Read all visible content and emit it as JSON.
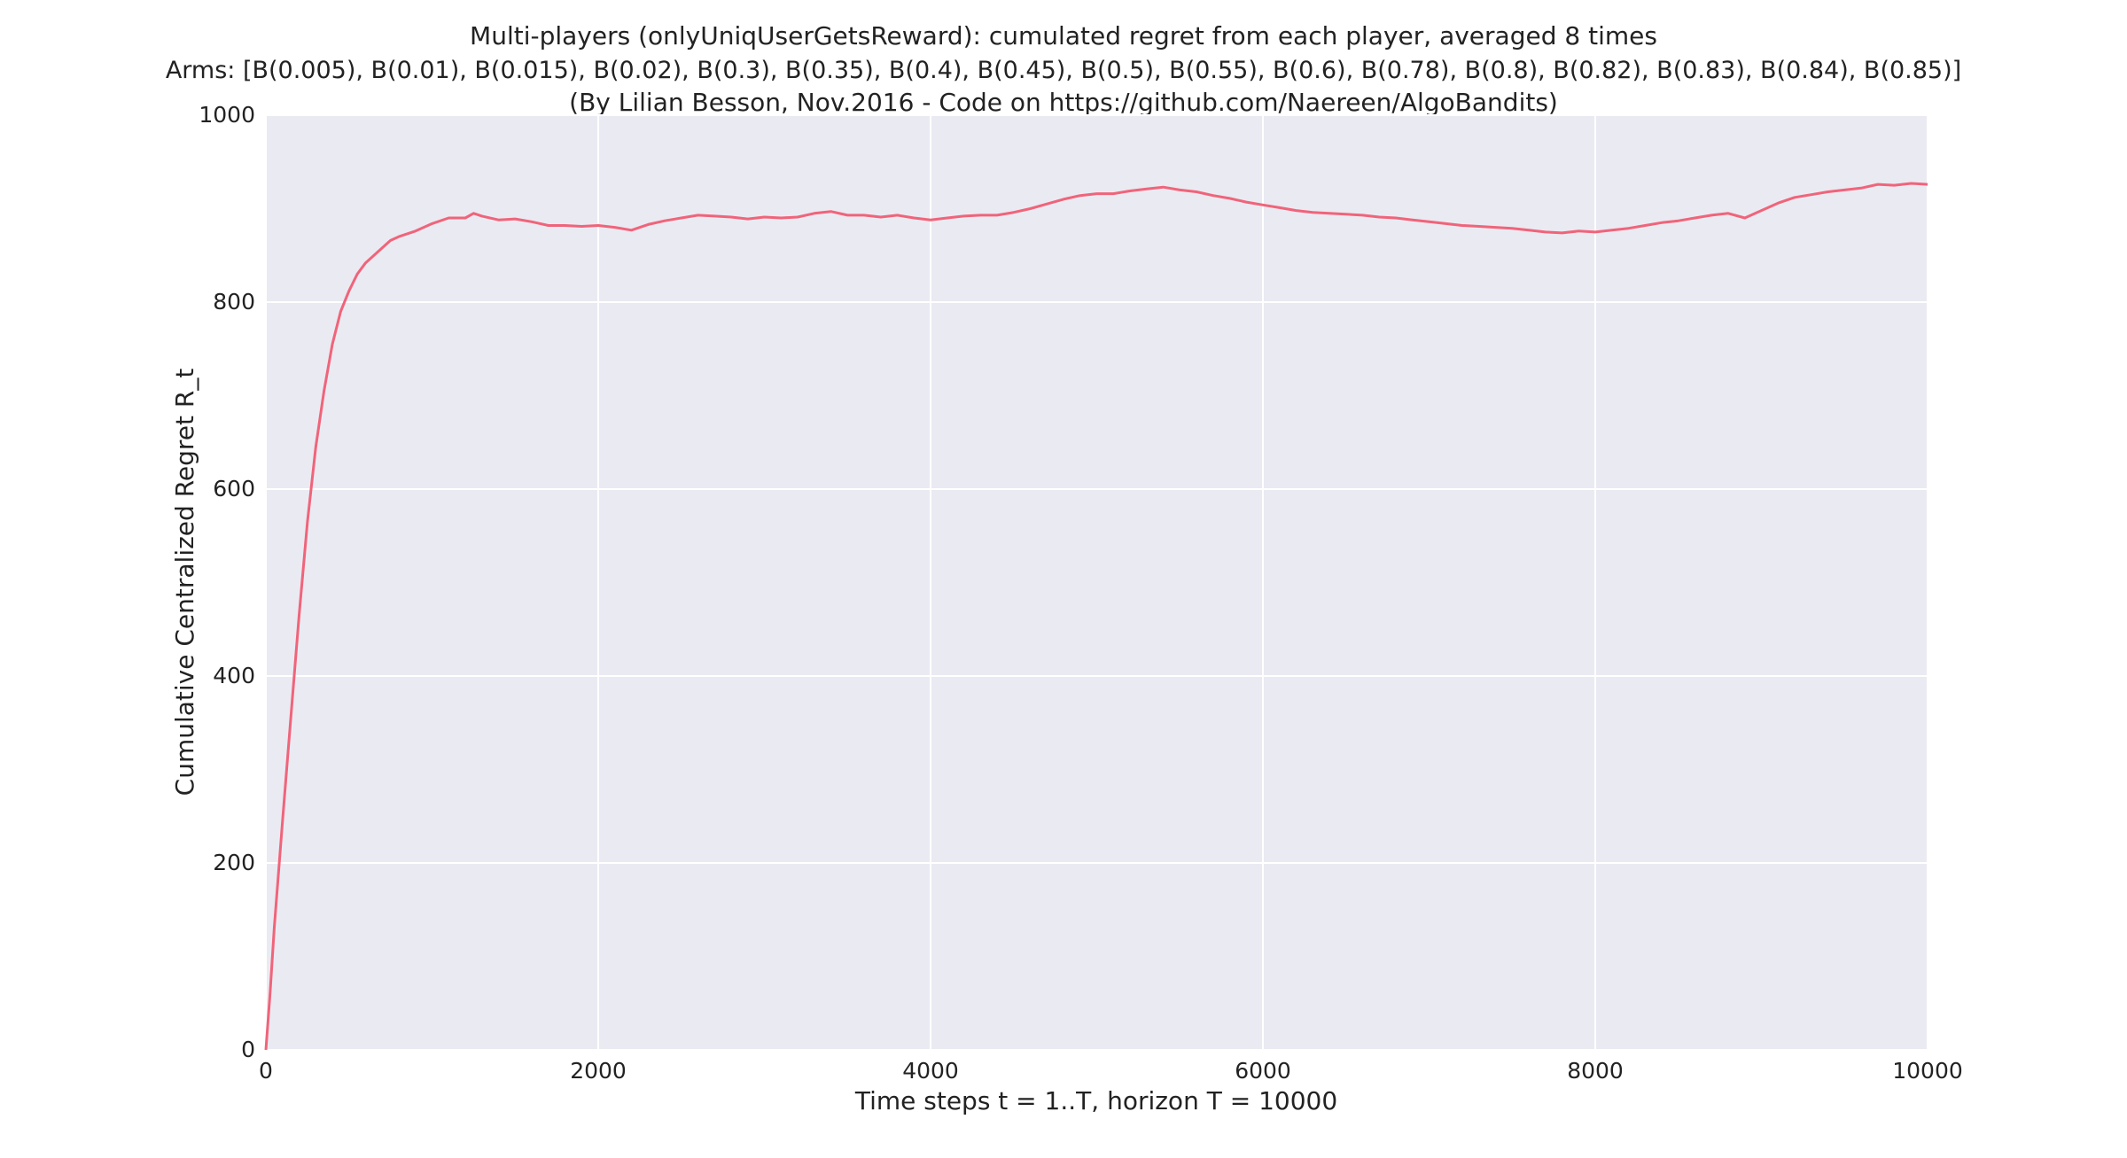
{
  "chart_data": {
    "type": "line",
    "title_lines": [
      "Multi-players (onlyUniqUserGetsReward): cumulated regret from each player, averaged 8 times",
      "Arms: [B(0.005), B(0.01), B(0.015), B(0.02), B(0.3), B(0.35), B(0.4), B(0.45), B(0.5), B(0.55), B(0.6), B(0.78), B(0.8), B(0.82), B(0.83), B(0.84), B(0.85)]",
      "(By Lilian Besson, Nov.2016 - Code on https://github.com/Naereen/AlgoBandits)"
    ],
    "xlabel": "Time steps t = 1..T, horizon T = 10000",
    "ylabel": "Cumulative Centralized Regret R_t",
    "xlim": [
      0,
      10000
    ],
    "ylim": [
      0,
      1000
    ],
    "x_ticks": [
      0,
      2000,
      4000,
      6000,
      8000,
      10000
    ],
    "y_ticks": [
      0,
      200,
      400,
      600,
      800,
      1000
    ],
    "grid": true,
    "background_color": "#eaeaf2",
    "grid_color": "#ffffff",
    "series": [
      {
        "color": "#f0647a",
        "x": [
          0,
          25,
          50,
          100,
          150,
          200,
          250,
          300,
          350,
          400,
          450,
          500,
          550,
          600,
          650,
          700,
          750,
          800,
          900,
          1000,
          1100,
          1200,
          1250,
          1300,
          1400,
          1500,
          1600,
          1700,
          1800,
          1900,
          2000,
          2100,
          2200,
          2300,
          2400,
          2500,
          2600,
          2700,
          2800,
          2900,
          3000,
          3100,
          3200,
          3300,
          3400,
          3500,
          3600,
          3700,
          3800,
          3900,
          4000,
          4100,
          4200,
          4300,
          4400,
          4500,
          4600,
          4700,
          4800,
          4900,
          5000,
          5100,
          5200,
          5300,
          5400,
          5500,
          5600,
          5700,
          5800,
          5900,
          6000,
          6100,
          6200,
          6300,
          6400,
          6500,
          6600,
          6700,
          6800,
          6900,
          7000,
          7100,
          7200,
          7300,
          7400,
          7500,
          7600,
          7700,
          7800,
          7900,
          8000,
          8100,
          8200,
          8300,
          8400,
          8500,
          8600,
          8700,
          8800,
          8900,
          9000,
          9100,
          9200,
          9300,
          9400,
          9500,
          9600,
          9700,
          9800,
          9900,
          10000
        ],
        "y": [
          0,
          60,
          130,
          245,
          355,
          465,
          565,
          645,
          705,
          755,
          790,
          812,
          830,
          842,
          850,
          858,
          866,
          870,
          876,
          884,
          890,
          890,
          895,
          892,
          888,
          889,
          886,
          882,
          882,
          881,
          882,
          880,
          877,
          883,
          887,
          890,
          893,
          892,
          891,
          889,
          891,
          890,
          891,
          895,
          897,
          893,
          893,
          891,
          893,
          890,
          888,
          890,
          892,
          893,
          893,
          896,
          900,
          905,
          910,
          914,
          916,
          916,
          919,
          921,
          923,
          920,
          918,
          914,
          911,
          907,
          904,
          901,
          898,
          896,
          895,
          894,
          893,
          891,
          890,
          888,
          886,
          884,
          882,
          881,
          880,
          879,
          877,
          875,
          874,
          876,
          875,
          877,
          879,
          882,
          885,
          887,
          890,
          893,
          895,
          890,
          898,
          906,
          912,
          915,
          918,
          920,
          922,
          926,
          925,
          927,
          926
        ]
      }
    ]
  }
}
